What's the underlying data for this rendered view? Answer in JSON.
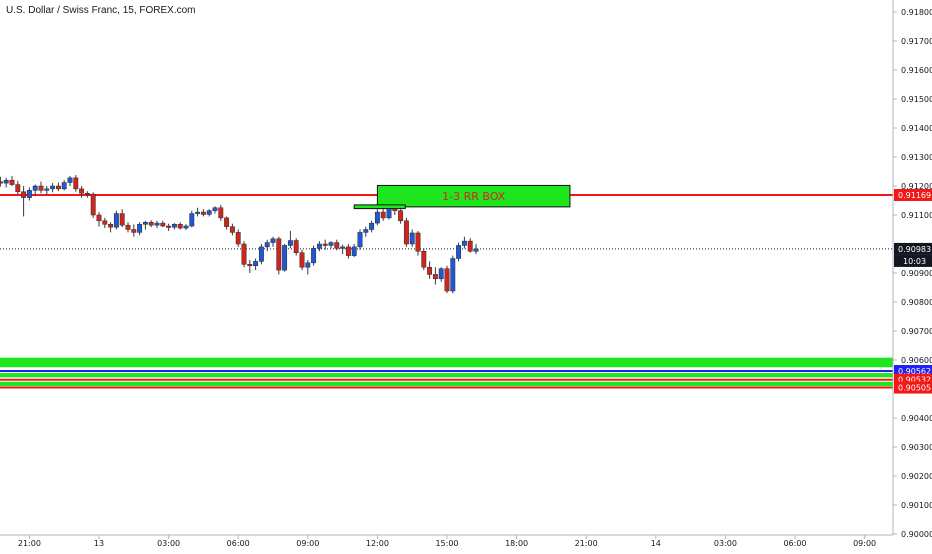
{
  "chart_data": {
    "type": "candlestick",
    "title": "U.S. Dollar / Swiss Franc, 15, FOREX.com",
    "ylim": [
      0.9,
      0.9185
    ],
    "y_ticks": [
      "0.91800",
      "0.91700",
      "0.91600",
      "0.91500",
      "0.91400",
      "0.91300",
      "0.91200",
      "0.91100",
      "0.90900",
      "0.90800",
      "0.90700",
      "0.90600",
      "0.90400",
      "0.90300",
      "0.90200",
      "0.90100",
      "0.90000"
    ],
    "x_ticks": [
      "21:00",
      "13",
      "03:00",
      "06:00",
      "09:00",
      "12:00",
      "15:00",
      "18:00",
      "21:00",
      "14",
      "03:00",
      "06:00",
      "09:00"
    ],
    "x_tick_hours": [
      21,
      24,
      27,
      30,
      33,
      36,
      39,
      42,
      45,
      48,
      51,
      54,
      57
    ],
    "x_range_hours": [
      19.25,
      57.5
    ],
    "candles": [
      {
        "t": 19.25,
        "o": 0.91248,
        "h": 0.91265,
        "l": 0.91215,
        "c": 0.9123
      },
      {
        "t": 19.5,
        "o": 0.9123,
        "h": 0.9124,
        "l": 0.91205,
        "c": 0.91215
      },
      {
        "t": 19.75,
        "o": 0.91215,
        "h": 0.91232,
        "l": 0.91198,
        "c": 0.9121
      },
      {
        "t": 20.0,
        "o": 0.9121,
        "h": 0.91228,
        "l": 0.91195,
        "c": 0.9122
      },
      {
        "t": 20.25,
        "o": 0.9122,
        "h": 0.91235,
        "l": 0.912,
        "c": 0.91205
      },
      {
        "t": 20.5,
        "o": 0.91205,
        "h": 0.91218,
        "l": 0.9117,
        "c": 0.9118
      },
      {
        "t": 20.75,
        "o": 0.9118,
        "h": 0.912,
        "l": 0.91095,
        "c": 0.9116
      },
      {
        "t": 21.0,
        "o": 0.9116,
        "h": 0.91195,
        "l": 0.9115,
        "c": 0.91185
      },
      {
        "t": 21.25,
        "o": 0.91185,
        "h": 0.91205,
        "l": 0.91165,
        "c": 0.912
      },
      {
        "t": 21.5,
        "o": 0.912,
        "h": 0.91215,
        "l": 0.91175,
        "c": 0.91185
      },
      {
        "t": 21.75,
        "o": 0.91185,
        "h": 0.912,
        "l": 0.9117,
        "c": 0.9119
      },
      {
        "t": 22.0,
        "o": 0.9119,
        "h": 0.9121,
        "l": 0.91178,
        "c": 0.912
      },
      {
        "t": 22.25,
        "o": 0.912,
        "h": 0.91212,
        "l": 0.91182,
        "c": 0.9119
      },
      {
        "t": 22.5,
        "o": 0.9119,
        "h": 0.9122,
        "l": 0.91185,
        "c": 0.91212
      },
      {
        "t": 22.75,
        "o": 0.91212,
        "h": 0.91235,
        "l": 0.912,
        "c": 0.91228
      },
      {
        "t": 23.0,
        "o": 0.91228,
        "h": 0.91238,
        "l": 0.9118,
        "c": 0.9119
      },
      {
        "t": 23.25,
        "o": 0.9119,
        "h": 0.912,
        "l": 0.9116,
        "c": 0.91175
      },
      {
        "t": 23.5,
        "o": 0.91175,
        "h": 0.91182,
        "l": 0.9116,
        "c": 0.91172
      },
      {
        "t": 23.75,
        "o": 0.91172,
        "h": 0.91178,
        "l": 0.9109,
        "c": 0.911
      },
      {
        "t": 24.0,
        "o": 0.911,
        "h": 0.9111,
        "l": 0.9106,
        "c": 0.9108
      },
      {
        "t": 24.25,
        "o": 0.9108,
        "h": 0.9109,
        "l": 0.91055,
        "c": 0.91068
      },
      {
        "t": 24.5,
        "o": 0.91068,
        "h": 0.91075,
        "l": 0.9104,
        "c": 0.91058
      },
      {
        "t": 24.75,
        "o": 0.91058,
        "h": 0.91115,
        "l": 0.9105,
        "c": 0.91105
      },
      {
        "t": 25.0,
        "o": 0.91105,
        "h": 0.9112,
        "l": 0.91058,
        "c": 0.91065
      },
      {
        "t": 25.25,
        "o": 0.91065,
        "h": 0.91075,
        "l": 0.9104,
        "c": 0.9105
      },
      {
        "t": 25.5,
        "o": 0.9105,
        "h": 0.91068,
        "l": 0.91025,
        "c": 0.9104
      },
      {
        "t": 25.75,
        "o": 0.9104,
        "h": 0.91075,
        "l": 0.9103,
        "c": 0.91068
      },
      {
        "t": 26.0,
        "o": 0.91068,
        "h": 0.9108,
        "l": 0.9105,
        "c": 0.91075
      },
      {
        "t": 26.25,
        "o": 0.91075,
        "h": 0.91082,
        "l": 0.91058,
        "c": 0.91065
      },
      {
        "t": 26.5,
        "o": 0.91065,
        "h": 0.9108,
        "l": 0.91055,
        "c": 0.91072
      },
      {
        "t": 26.75,
        "o": 0.91072,
        "h": 0.9108,
        "l": 0.91058,
        "c": 0.91062
      },
      {
        "t": 27.0,
        "o": 0.91062,
        "h": 0.9107,
        "l": 0.91045,
        "c": 0.91058
      },
      {
        "t": 27.25,
        "o": 0.91058,
        "h": 0.91072,
        "l": 0.9105,
        "c": 0.91068
      },
      {
        "t": 27.5,
        "o": 0.91068,
        "h": 0.91075,
        "l": 0.9105,
        "c": 0.91055
      },
      {
        "t": 27.75,
        "o": 0.91055,
        "h": 0.91068,
        "l": 0.91048,
        "c": 0.91062
      },
      {
        "t": 28.0,
        "o": 0.91062,
        "h": 0.91115,
        "l": 0.91058,
        "c": 0.91105
      },
      {
        "t": 28.25,
        "o": 0.91105,
        "h": 0.91125,
        "l": 0.91095,
        "c": 0.9111
      },
      {
        "t": 28.5,
        "o": 0.9111,
        "h": 0.9112,
        "l": 0.91095,
        "c": 0.91102
      },
      {
        "t": 28.75,
        "o": 0.91102,
        "h": 0.9112,
        "l": 0.91095,
        "c": 0.91115
      },
      {
        "t": 29.0,
        "o": 0.91115,
        "h": 0.9113,
        "l": 0.91105,
        "c": 0.91125
      },
      {
        "t": 29.25,
        "o": 0.91125,
        "h": 0.91135,
        "l": 0.9108,
        "c": 0.9109
      },
      {
        "t": 29.5,
        "o": 0.9109,
        "h": 0.91095,
        "l": 0.9105,
        "c": 0.9106
      },
      {
        "t": 29.75,
        "o": 0.9106,
        "h": 0.9107,
        "l": 0.9103,
        "c": 0.9104
      },
      {
        "t": 30.0,
        "o": 0.9104,
        "h": 0.9105,
        "l": 0.9099,
        "c": 0.91
      },
      {
        "t": 30.25,
        "o": 0.91,
        "h": 0.9101,
        "l": 0.9092,
        "c": 0.9093
      },
      {
        "t": 30.5,
        "o": 0.9093,
        "h": 0.90945,
        "l": 0.909,
        "c": 0.90925
      },
      {
        "t": 30.75,
        "o": 0.90925,
        "h": 0.9095,
        "l": 0.9091,
        "c": 0.9094
      },
      {
        "t": 31.0,
        "o": 0.9094,
        "h": 0.91,
        "l": 0.9093,
        "c": 0.9099
      },
      {
        "t": 31.25,
        "o": 0.9099,
        "h": 0.91015,
        "l": 0.90975,
        "c": 0.91005
      },
      {
        "t": 31.5,
        "o": 0.91005,
        "h": 0.91025,
        "l": 0.9099,
        "c": 0.91018
      },
      {
        "t": 31.75,
        "o": 0.91018,
        "h": 0.91025,
        "l": 0.90895,
        "c": 0.9091
      },
      {
        "t": 32.0,
        "o": 0.9091,
        "h": 0.91,
        "l": 0.90905,
        "c": 0.90995
      },
      {
        "t": 32.25,
        "o": 0.90995,
        "h": 0.91045,
        "l": 0.90985,
        "c": 0.91012
      },
      {
        "t": 32.5,
        "o": 0.91012,
        "h": 0.9102,
        "l": 0.9096,
        "c": 0.9097
      },
      {
        "t": 32.75,
        "o": 0.9097,
        "h": 0.9098,
        "l": 0.9091,
        "c": 0.9092
      },
      {
        "t": 33.0,
        "o": 0.9092,
        "h": 0.90945,
        "l": 0.90895,
        "c": 0.90935
      },
      {
        "t": 33.25,
        "o": 0.90935,
        "h": 0.90995,
        "l": 0.90925,
        "c": 0.90985
      },
      {
        "t": 33.5,
        "o": 0.90985,
        "h": 0.9101,
        "l": 0.90975,
        "c": 0.91
      },
      {
        "t": 33.75,
        "o": 0.91,
        "h": 0.91015,
        "l": 0.9098,
        "c": 0.90995
      },
      {
        "t": 34.0,
        "o": 0.90995,
        "h": 0.9101,
        "l": 0.90985,
        "c": 0.91005
      },
      {
        "t": 34.25,
        "o": 0.91005,
        "h": 0.91015,
        "l": 0.90978,
        "c": 0.90985
      },
      {
        "t": 34.5,
        "o": 0.90985,
        "h": 0.90998,
        "l": 0.90965,
        "c": 0.9099
      },
      {
        "t": 34.75,
        "o": 0.9099,
        "h": 0.91,
        "l": 0.9095,
        "c": 0.9096
      },
      {
        "t": 35.0,
        "o": 0.9096,
        "h": 0.91,
        "l": 0.90955,
        "c": 0.9099
      },
      {
        "t": 35.25,
        "o": 0.9099,
        "h": 0.9105,
        "l": 0.9098,
        "c": 0.9104
      },
      {
        "t": 35.5,
        "o": 0.9104,
        "h": 0.9106,
        "l": 0.91025,
        "c": 0.9105
      },
      {
        "t": 35.75,
        "o": 0.9105,
        "h": 0.9108,
        "l": 0.9104,
        "c": 0.91072
      },
      {
        "t": 36.0,
        "o": 0.91072,
        "h": 0.9112,
        "l": 0.91065,
        "c": 0.9111
      },
      {
        "t": 36.25,
        "o": 0.9111,
        "h": 0.91135,
        "l": 0.9108,
        "c": 0.9109
      },
      {
        "t": 36.5,
        "o": 0.9109,
        "h": 0.9114,
        "l": 0.91085,
        "c": 0.91132
      },
      {
        "t": 36.75,
        "o": 0.91132,
        "h": 0.91195,
        "l": 0.911,
        "c": 0.91115
      },
      {
        "t": 37.0,
        "o": 0.91115,
        "h": 0.9112,
        "l": 0.9107,
        "c": 0.9108
      },
      {
        "t": 37.25,
        "o": 0.9108,
        "h": 0.9109,
        "l": 0.9099,
        "c": 0.91
      },
      {
        "t": 37.5,
        "o": 0.91,
        "h": 0.9105,
        "l": 0.9099,
        "c": 0.91038
      },
      {
        "t": 37.75,
        "o": 0.91038,
        "h": 0.91045,
        "l": 0.9096,
        "c": 0.90975
      },
      {
        "t": 38.0,
        "o": 0.90975,
        "h": 0.90985,
        "l": 0.9091,
        "c": 0.9092
      },
      {
        "t": 38.25,
        "o": 0.9092,
        "h": 0.9094,
        "l": 0.9088,
        "c": 0.90895
      },
      {
        "t": 38.5,
        "o": 0.90895,
        "h": 0.9092,
        "l": 0.9086,
        "c": 0.9088
      },
      {
        "t": 38.75,
        "o": 0.9088,
        "h": 0.9092,
        "l": 0.9087,
        "c": 0.90915
      },
      {
        "t": 39.0,
        "o": 0.90915,
        "h": 0.90925,
        "l": 0.9083,
        "c": 0.90838
      },
      {
        "t": 39.25,
        "o": 0.90838,
        "h": 0.9096,
        "l": 0.9083,
        "c": 0.9095
      },
      {
        "t": 39.5,
        "o": 0.9095,
        "h": 0.91005,
        "l": 0.9094,
        "c": 0.90995
      },
      {
        "t": 39.75,
        "o": 0.90995,
        "h": 0.91025,
        "l": 0.90985,
        "c": 0.9101
      },
      {
        "t": 40.0,
        "o": 0.9101,
        "h": 0.9102,
        "l": 0.9097,
        "c": 0.90975
      },
      {
        "t": 40.25,
        "o": 0.90975,
        "h": 0.91,
        "l": 0.90965,
        "c": 0.90983
      }
    ],
    "lines": [
      {
        "price": 0.91169,
        "color": "#f21818",
        "label": "0.91169"
      },
      {
        "price": 0.90983,
        "color": "#131722",
        "dashed": true,
        "label": "0.90983",
        "sublabel": "10:03"
      },
      {
        "price": 0.90562,
        "color": "#2121f0",
        "label": "0.90562"
      },
      {
        "price": 0.90532,
        "color": "#f21818",
        "label": "0.90532"
      },
      {
        "price": 0.90505,
        "color": "#f21818",
        "label": "0.90505"
      }
    ],
    "zones": [
      {
        "top": 0.90608,
        "bottom": 0.90575
      },
      {
        "top": 0.90555,
        "bottom": 0.9054
      },
      {
        "top": 0.90525,
        "bottom": 0.9051
      }
    ],
    "rr_box": {
      "t1": 36.0,
      "t2": 44.3,
      "top": 0.91202,
      "bottom": 0.91128,
      "label": "1-3 RR BOX"
    },
    "entry_box": {
      "t1": 35.0,
      "t2": 37.2,
      "top": 0.91135,
      "bottom": 0.91122
    }
  }
}
